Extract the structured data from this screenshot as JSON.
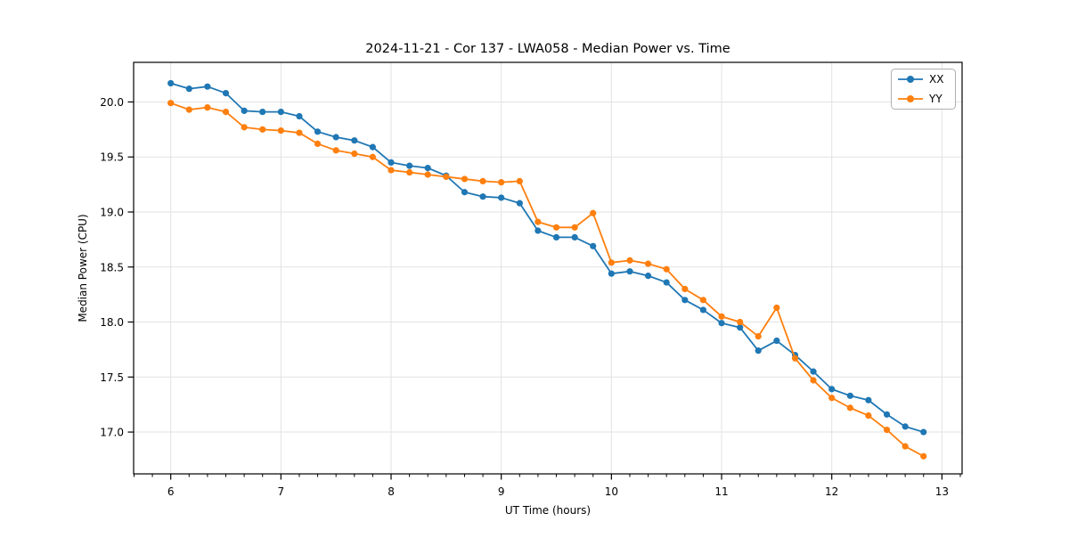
{
  "chart_data": {
    "type": "line",
    "title": "2024-11-21 - Cor 137 - LWA058 - Median Power vs. Time",
    "xlabel": "UT Time (hours)",
    "ylabel": "Median Power (CPU)",
    "x": [
      6.0,
      6.167,
      6.333,
      6.5,
      6.667,
      6.833,
      7.0,
      7.167,
      7.333,
      7.5,
      7.667,
      7.833,
      8.0,
      8.167,
      8.333,
      8.5,
      8.667,
      8.833,
      9.0,
      9.167,
      9.333,
      9.5,
      9.667,
      9.833,
      10.0,
      10.167,
      10.333,
      10.5,
      10.667,
      10.833,
      11.0,
      11.167,
      11.333,
      11.5,
      11.667,
      11.833,
      12.0,
      12.167,
      12.333,
      12.5,
      12.667,
      12.833
    ],
    "series": [
      {
        "name": "XX",
        "color": "#1f77b4",
        "marker": "circle",
        "values": [
          20.17,
          20.12,
          20.14,
          20.08,
          19.92,
          19.91,
          19.91,
          19.87,
          19.73,
          19.68,
          19.65,
          19.59,
          19.45,
          19.42,
          19.4,
          19.33,
          19.18,
          19.14,
          19.13,
          19.08,
          18.83,
          18.77,
          18.77,
          18.69,
          18.44,
          18.46,
          18.42,
          18.36,
          18.2,
          18.11,
          17.99,
          17.95,
          17.74,
          17.83,
          17.7,
          17.55,
          17.39,
          17.33,
          17.29,
          17.16,
          17.05,
          17.0
        ]
      },
      {
        "name": "YY",
        "color": "#ff7f0e",
        "marker": "circle",
        "values": [
          19.99,
          19.93,
          19.95,
          19.91,
          19.77,
          19.75,
          19.74,
          19.72,
          19.62,
          19.56,
          19.53,
          19.5,
          19.38,
          19.36,
          19.34,
          19.32,
          19.3,
          19.28,
          19.27,
          19.28,
          18.91,
          18.86,
          18.86,
          18.99,
          18.54,
          18.56,
          18.53,
          18.48,
          18.3,
          18.2,
          18.05,
          18.0,
          17.87,
          18.13,
          17.67,
          17.47,
          17.31,
          17.22,
          17.15,
          17.02,
          16.87,
          16.78
        ]
      }
    ],
    "xlim": [
      5.663,
      13.183
    ],
    "ylim": [
      16.62,
      20.36
    ],
    "xticks": [
      6,
      7,
      8,
      9,
      10,
      11,
      12,
      13
    ],
    "yticks": [
      17.0,
      17.5,
      18.0,
      18.5,
      19.0,
      19.5,
      20.0
    ],
    "x_minor_ticks_per_hour": 6,
    "grid": true,
    "grid_color": "#e2e2e2",
    "axis_color": "#000000",
    "legend": {
      "position": "upper right",
      "entries": [
        "XX",
        "YY"
      ]
    }
  }
}
